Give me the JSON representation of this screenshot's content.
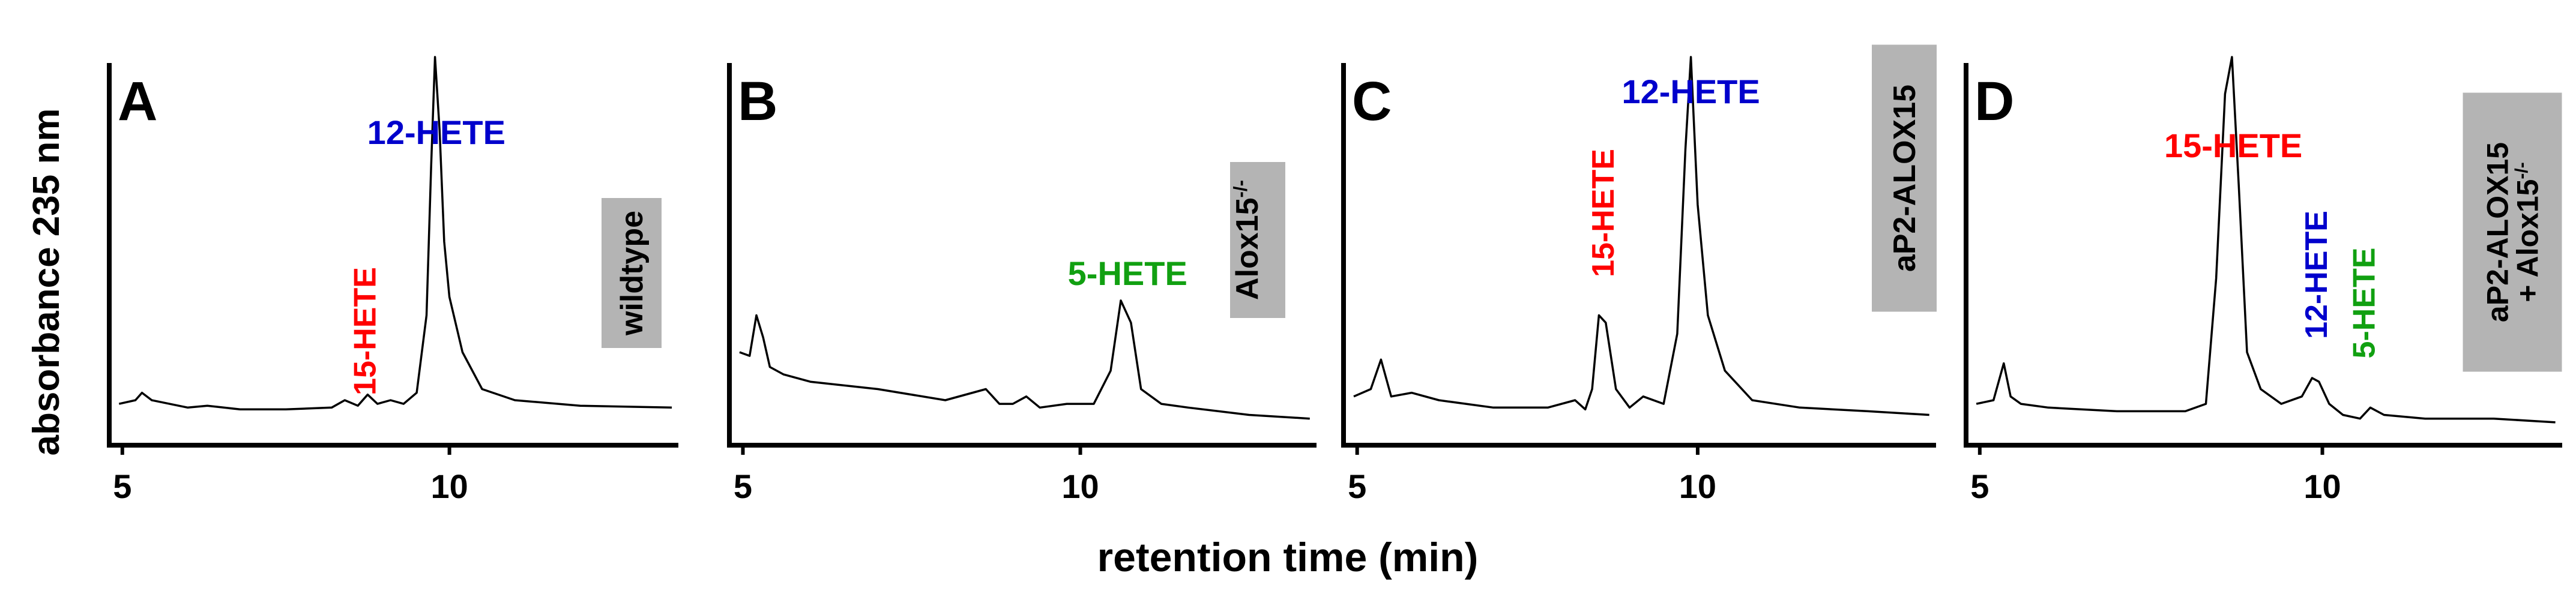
{
  "figure": {
    "ylabel": "absorbance 235 nm",
    "xlabel": "retention time (min)"
  },
  "colors": {
    "red": "#ff0000",
    "blue": "#0000cc",
    "green": "#11a011",
    "tag_bg": "#b4b4b4",
    "trace": "#000000"
  },
  "chart_data": [
    {
      "type": "line",
      "panel": "A",
      "xlim": [
        4.8,
        13.5
      ],
      "x_ticks": [
        5,
        10
      ],
      "tag": [
        "wildtype"
      ],
      "peak_labels": [
        {
          "text": "12-HETE",
          "color": "blue",
          "orientation": "horizontal",
          "x": 9.8
        },
        {
          "text": "15-HETE",
          "color": "red",
          "orientation": "vertical",
          "x": 8.7
        }
      ],
      "series": [
        {
          "x": [
            4.95,
            5.2,
            5.3,
            5.45,
            6.0,
            6.3,
            6.8,
            7.5,
            8.2,
            8.4,
            8.6,
            8.75,
            8.9,
            9.1,
            9.3,
            9.5,
            9.65,
            9.72,
            9.78,
            9.85,
            9.92,
            10.0,
            10.2,
            10.5,
            11.0,
            12.0,
            13.4
          ],
          "y": [
            0.06,
            0.07,
            0.09,
            0.07,
            0.05,
            0.055,
            0.045,
            0.045,
            0.05,
            0.07,
            0.055,
            0.085,
            0.06,
            0.07,
            0.06,
            0.09,
            0.3,
            0.7,
            1.0,
            0.8,
            0.5,
            0.35,
            0.2,
            0.1,
            0.07,
            0.055,
            0.05
          ]
        }
      ]
    },
    {
      "type": "line",
      "panel": "B",
      "xlim": [
        4.8,
        13.5
      ],
      "x_ticks": [
        5,
        10
      ],
      "tag": [
        "Alox15",
        "-/-"
      ],
      "peak_labels": [
        {
          "text": "5-HETE",
          "color": "green",
          "orientation": "horizontal",
          "x": 10.7
        }
      ],
      "series": [
        {
          "x": [
            4.95,
            5.1,
            5.2,
            5.3,
            5.4,
            5.6,
            6.0,
            7.0,
            8.0,
            8.6,
            8.8,
            9.0,
            9.2,
            9.4,
            9.8,
            10.2,
            10.45,
            10.6,
            10.75,
            10.9,
            11.2,
            11.6,
            12.5,
            13.4
          ],
          "y": [
            0.2,
            0.19,
            0.3,
            0.24,
            0.16,
            0.14,
            0.12,
            0.1,
            0.07,
            0.1,
            0.06,
            0.06,
            0.08,
            0.05,
            0.06,
            0.06,
            0.15,
            0.34,
            0.28,
            0.1,
            0.06,
            0.05,
            0.03,
            0.02
          ]
        }
      ]
    },
    {
      "type": "line",
      "panel": "C",
      "xlim": [
        4.8,
        13.5
      ],
      "x_ticks": [
        5,
        10
      ],
      "tag": [
        "aP2-ALOX15"
      ],
      "peak_labels": [
        {
          "text": "12-HETE",
          "color": "blue",
          "orientation": "horizontal",
          "x": 9.9
        },
        {
          "text": "15-HETE",
          "color": "red",
          "orientation": "vertical",
          "x": 8.6
        }
      ],
      "series": [
        {
          "x": [
            4.95,
            5.2,
            5.35,
            5.5,
            5.8,
            6.2,
            7.0,
            7.8,
            8.2,
            8.35,
            8.45,
            8.55,
            8.65,
            8.8,
            9.0,
            9.2,
            9.5,
            9.7,
            9.82,
            9.9,
            10.0,
            10.15,
            10.4,
            10.8,
            11.5,
            12.5,
            13.4
          ],
          "y": [
            0.08,
            0.1,
            0.18,
            0.08,
            0.09,
            0.07,
            0.05,
            0.05,
            0.07,
            0.045,
            0.1,
            0.3,
            0.28,
            0.1,
            0.05,
            0.08,
            0.06,
            0.25,
            0.75,
            1.0,
            0.6,
            0.3,
            0.15,
            0.07,
            0.05,
            0.04,
            0.03
          ]
        }
      ]
    },
    {
      "type": "line",
      "panel": "D",
      "xlim": [
        4.8,
        13.5
      ],
      "x_ticks": [
        5,
        10
      ],
      "tag": [
        "aP2-ALOX15",
        "+ Alox15",
        "-/-"
      ],
      "peak_labels": [
        {
          "text": "15-HETE",
          "color": "red",
          "orientation": "horizontal",
          "x": 8.7
        },
        {
          "text": "12-HETE",
          "color": "blue",
          "orientation": "vertical",
          "x": 9.9
        },
        {
          "text": "5-HETE",
          "color": "green",
          "orientation": "vertical",
          "x": 10.6
        }
      ],
      "series": [
        {
          "x": [
            4.95,
            5.2,
            5.35,
            5.45,
            5.6,
            6.0,
            7.0,
            8.0,
            8.3,
            8.45,
            8.58,
            8.68,
            8.78,
            8.9,
            9.1,
            9.4,
            9.7,
            9.85,
            9.95,
            10.1,
            10.3,
            10.55,
            10.7,
            10.9,
            11.5,
            12.5,
            13.4
          ],
          "y": [
            0.06,
            0.07,
            0.17,
            0.08,
            0.06,
            0.05,
            0.04,
            0.04,
            0.06,
            0.4,
            0.9,
            1.0,
            0.65,
            0.2,
            0.1,
            0.06,
            0.08,
            0.13,
            0.12,
            0.06,
            0.03,
            0.02,
            0.05,
            0.03,
            0.02,
            0.02,
            0.01
          ]
        }
      ]
    }
  ]
}
